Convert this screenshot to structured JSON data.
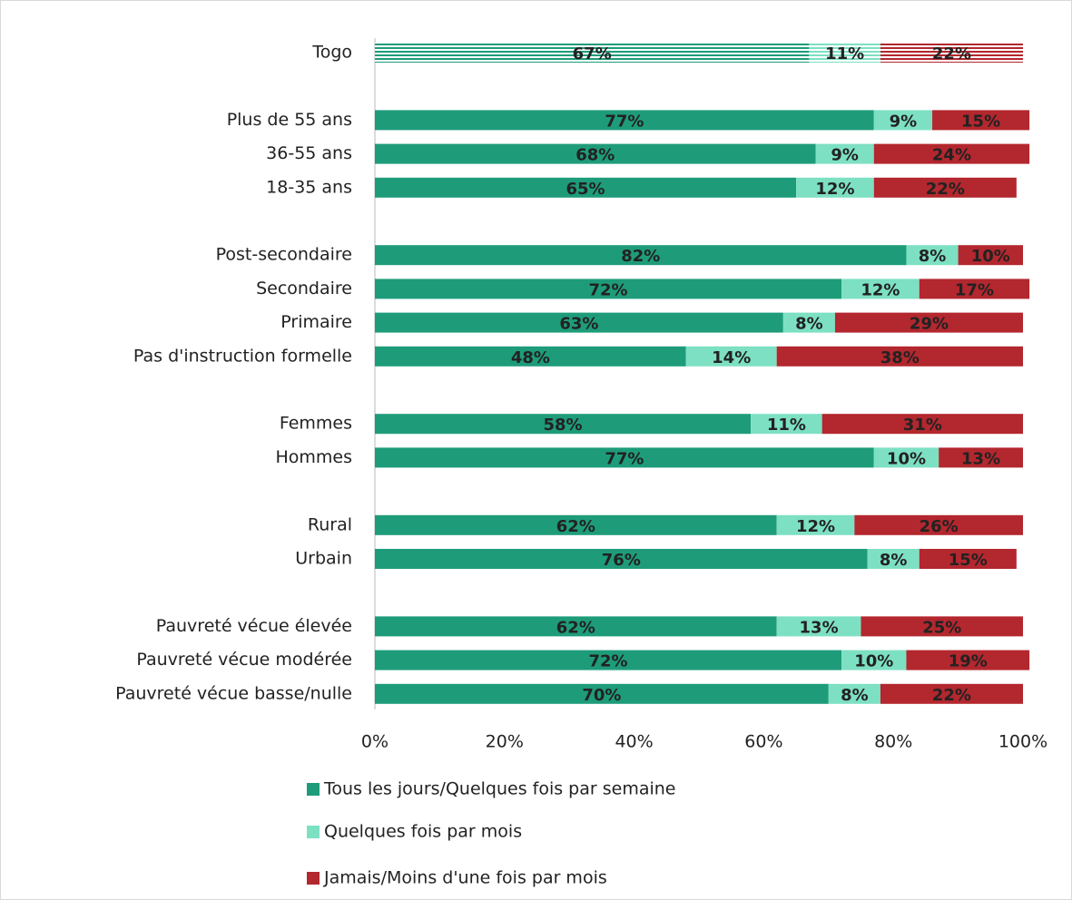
{
  "chart_data": {
    "type": "stacked-bar-horizontal",
    "categories": [
      "Togo",
      null,
      "Plus de 55 ans",
      "36-55 ans",
      "18-35 ans",
      null,
      "Post-secondaire",
      "Secondaire",
      "Primaire",
      "Pas d'instruction formelle",
      null,
      "Femmes",
      "Hommes",
      null,
      "Rural",
      "Urbain",
      null,
      "Pauvreté vécue élevée",
      "Pauvreté vécue modérée",
      "Pauvreté vécue basse/nulle"
    ],
    "series": [
      {
        "name": "Tous les jours/Quelques fois par semaine",
        "color": "#1e9c7a",
        "label_color": "#111",
        "values": [
          67,
          null,
          77,
          68,
          65,
          null,
          82,
          72,
          63,
          48,
          null,
          58,
          77,
          null,
          62,
          76,
          null,
          62,
          72,
          70
        ],
        "value_labels": [
          "67%",
          null,
          "77%",
          "68%",
          "65%",
          null,
          "82%",
          "72%",
          "63%",
          "48%",
          null,
          "58%",
          "77%",
          null,
          "62%",
          "76%",
          null,
          "62%",
          "72%",
          "70%"
        ]
      },
      {
        "name": "Quelques fois par mois",
        "color": "#7de0c3",
        "label_color": "#111",
        "values": [
          11,
          null,
          9,
          9,
          12,
          null,
          8,
          12,
          8,
          14,
          null,
          11,
          10,
          null,
          12,
          8,
          null,
          13,
          10,
          8
        ],
        "value_labels": [
          "11%",
          null,
          "9%",
          "9%",
          "12%",
          null,
          "8%",
          "12%",
          "8%",
          "14%",
          null,
          "11%",
          "10%",
          null,
          "12%",
          "8%",
          null,
          "13%",
          "10%",
          "8%"
        ]
      },
      {
        "name": "Jamais/Moins d'une fois par mois",
        "color": "#b3272e",
        "label_color": "#fff",
        "values": [
          22,
          null,
          15,
          24,
          22,
          null,
          10,
          17,
          29,
          38,
          null,
          31,
          13,
          null,
          26,
          15,
          null,
          25,
          19,
          22
        ],
        "value_labels": [
          "22%",
          null,
          "15%",
          "24%",
          "22%",
          null,
          "10%",
          "17%",
          "29%",
          "38%",
          null,
          "31%",
          "13%",
          null,
          "26%",
          "15%",
          null,
          "25%",
          "19%",
          "22%"
        ]
      }
    ],
    "hatched_index": 0,
    "xlim": [
      0,
      100
    ],
    "xticks": [
      {
        "value": 0,
        "label": "0%"
      },
      {
        "value": 20,
        "label": "20%"
      },
      {
        "value": 40,
        "label": "40%"
      },
      {
        "value": 60,
        "label": "60%"
      },
      {
        "value": 80,
        "label": "80%"
      },
      {
        "value": 100,
        "label": "100%"
      }
    ],
    "legend": "bottom"
  }
}
